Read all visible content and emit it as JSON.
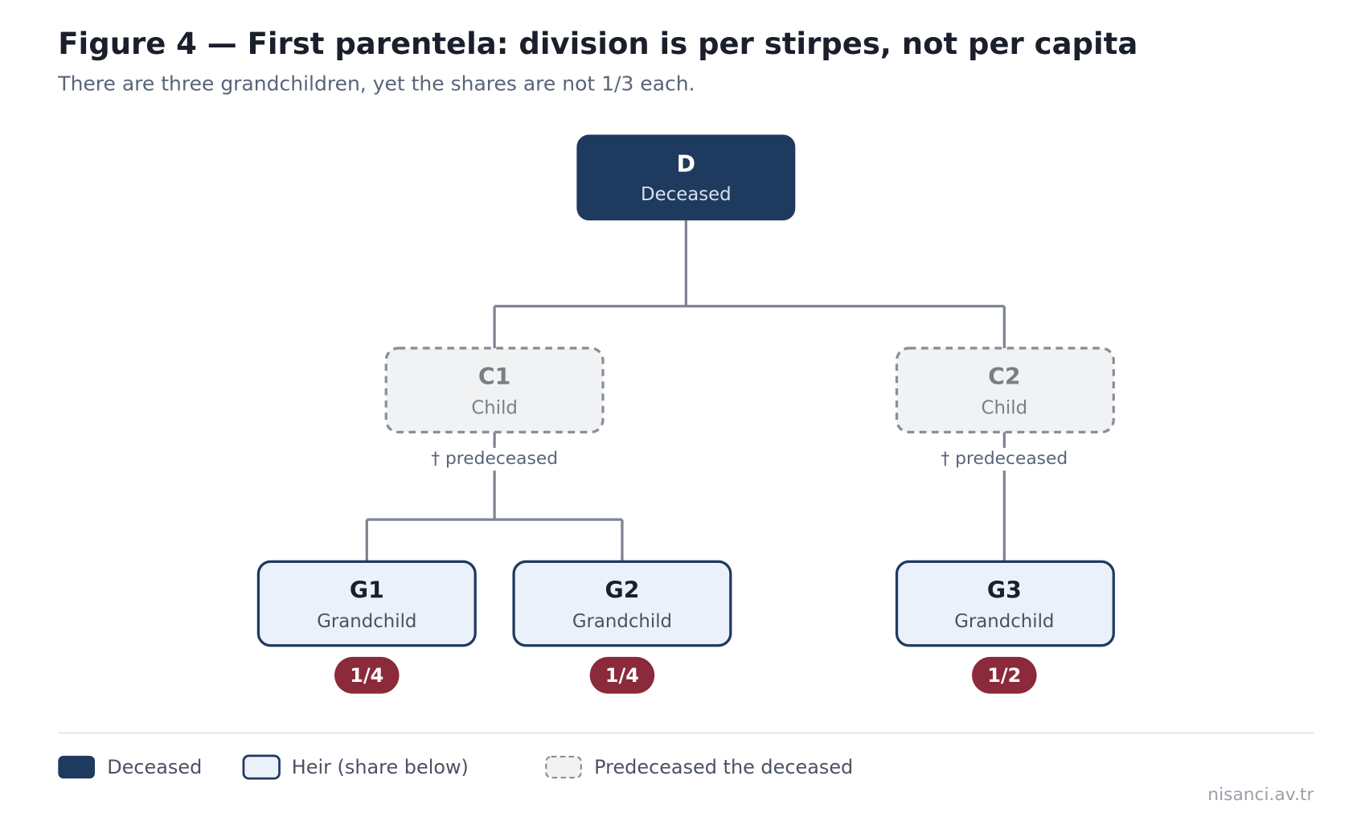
{
  "header": {
    "title": "Figure 4 — First parentela: division is per stirpes, not per capita",
    "subtitle": "There are three grandchildren, yet the shares are not 1/3 each."
  },
  "nodes": [
    {
      "label": "D",
      "role": "Deceased"
    },
    {
      "label": "C1",
      "role": "Child",
      "note": "† predeceased"
    },
    {
      "label": "C2",
      "role": "Child",
      "note": "† predeceased"
    },
    {
      "label": "G1",
      "role": "Grandchild",
      "share": "1/4"
    },
    {
      "label": "G2",
      "role": "Grandchild",
      "share": "1/4"
    },
    {
      "label": "G3",
      "role": "Grandchild",
      "share": "1/2"
    }
  ],
  "legend": [
    "Deceased",
    "Heir (share below)",
    "Predeceased the deceased"
  ],
  "footer": "nisanci.av.tr"
}
